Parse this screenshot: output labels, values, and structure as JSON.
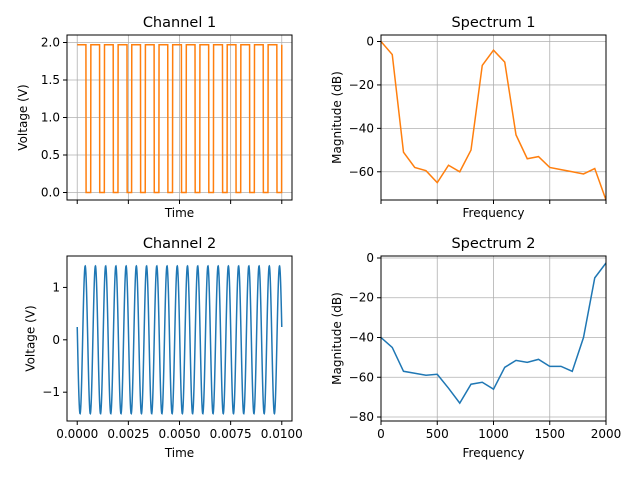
{
  "chart_data": [
    {
      "id": "ch1",
      "type": "line",
      "title": "Channel 1",
      "xlabel": "Time",
      "ylabel": "Voltage (V)",
      "xlim": [
        -0.0005,
        0.0105
      ],
      "ylim": [
        -0.1,
        2.1
      ],
      "grid": true,
      "color": "#ff7f0e",
      "x_tick_values": [
        0.0,
        0.0025,
        0.005,
        0.0075,
        0.01
      ],
      "x_tick_labels": [
        "",
        "",
        "",
        "",
        ""
      ],
      "y_tick_values": [
        0.0,
        0.5,
        1.0,
        1.5,
        2.0
      ],
      "y_tick_labels": [
        "0.0",
        "0.5",
        "1.0",
        "1.5",
        "2.0"
      ],
      "signal": {
        "kind": "square",
        "frequency_hz": 1500,
        "duty": 0.65,
        "high": 1.97,
        "low": 0.0,
        "duration_s": 0.01
      },
      "series": [
        {
          "values_note": "square wave 0.0–1.97 V"
        }
      ]
    },
    {
      "id": "sp1",
      "type": "line",
      "title": "Spectrum 1",
      "xlabel": "Frequency",
      "ylabel": "Magnitude (dB)",
      "xlim": [
        0,
        2000
      ],
      "ylim": [
        -73,
        3
      ],
      "grid": true,
      "color": "#ff7f0e",
      "x_tick_values": [
        0,
        500,
        1000,
        1500,
        2000
      ],
      "x_tick_labels": [
        "",
        "",
        "",
        "",
        ""
      ],
      "y_tick_values": [
        -60,
        -40,
        -20,
        0
      ],
      "y_tick_labels": [
        "−60",
        "−40",
        "−20",
        "0"
      ],
      "x": [
        0,
        100,
        200,
        300,
        400,
        500,
        600,
        700,
        800,
        900,
        1000,
        1100,
        1200,
        1300,
        1400,
        1500,
        1600,
        1700,
        1800,
        1900,
        2000
      ],
      "y": [
        0,
        -6,
        -51,
        -58,
        -59.5,
        -65,
        -57,
        -60,
        -50,
        -11,
        -4,
        -9.5,
        -43,
        -54,
        -53,
        -58,
        -59,
        -60,
        -61,
        -58.5,
        -73
      ]
    },
    {
      "id": "ch2",
      "type": "line",
      "title": "Channel 2",
      "xlabel": "Time",
      "ylabel": "Voltage (V)",
      "xlim": [
        -0.0005,
        0.0105
      ],
      "ylim": [
        -1.55,
        1.6
      ],
      "grid": false,
      "color": "#1f77b4",
      "x_tick_values": [
        0.0,
        0.0025,
        0.005,
        0.0075,
        0.01
      ],
      "x_tick_labels": [
        "0.0000",
        "0.0025",
        "0.0050",
        "0.0075",
        "0.0100"
      ],
      "y_tick_values": [
        -1,
        0,
        1
      ],
      "y_tick_labels": [
        "−1",
        "0",
        "1"
      ],
      "signal": {
        "kind": "sine",
        "frequency_hz": 2000,
        "amplitude": 1.41,
        "phase_deg": 170,
        "duration_s": 0.01
      }
    },
    {
      "id": "sp2",
      "type": "line",
      "title": "Spectrum 2",
      "xlabel": "Frequency",
      "ylabel": "Magnitude (dB)",
      "xlim": [
        0,
        2000
      ],
      "ylim": [
        -82,
        1
      ],
      "grid": true,
      "color": "#1f77b4",
      "x_tick_values": [
        0,
        500,
        1000,
        1500,
        2000
      ],
      "x_tick_labels": [
        "0",
        "500",
        "1000",
        "1500",
        "2000"
      ],
      "y_tick_values": [
        -80,
        -60,
        -40,
        -20,
        0
      ],
      "y_tick_labels": [
        "−80",
        "−60",
        "−40",
        "−20",
        "0"
      ],
      "x": [
        0,
        100,
        200,
        300,
        400,
        500,
        600,
        700,
        800,
        900,
        1000,
        1100,
        1200,
        1300,
        1400,
        1500,
        1600,
        1700,
        1800,
        1900,
        2000
      ],
      "y": [
        -40,
        -45,
        -57,
        -58,
        -59,
        -58.5,
        -65.5,
        -73,
        -63.5,
        -62.5,
        -66,
        -55,
        -51.5,
        -52.5,
        -51,
        -54.5,
        -54.5,
        -57,
        -40,
        -10,
        -2.5
      ]
    }
  ]
}
